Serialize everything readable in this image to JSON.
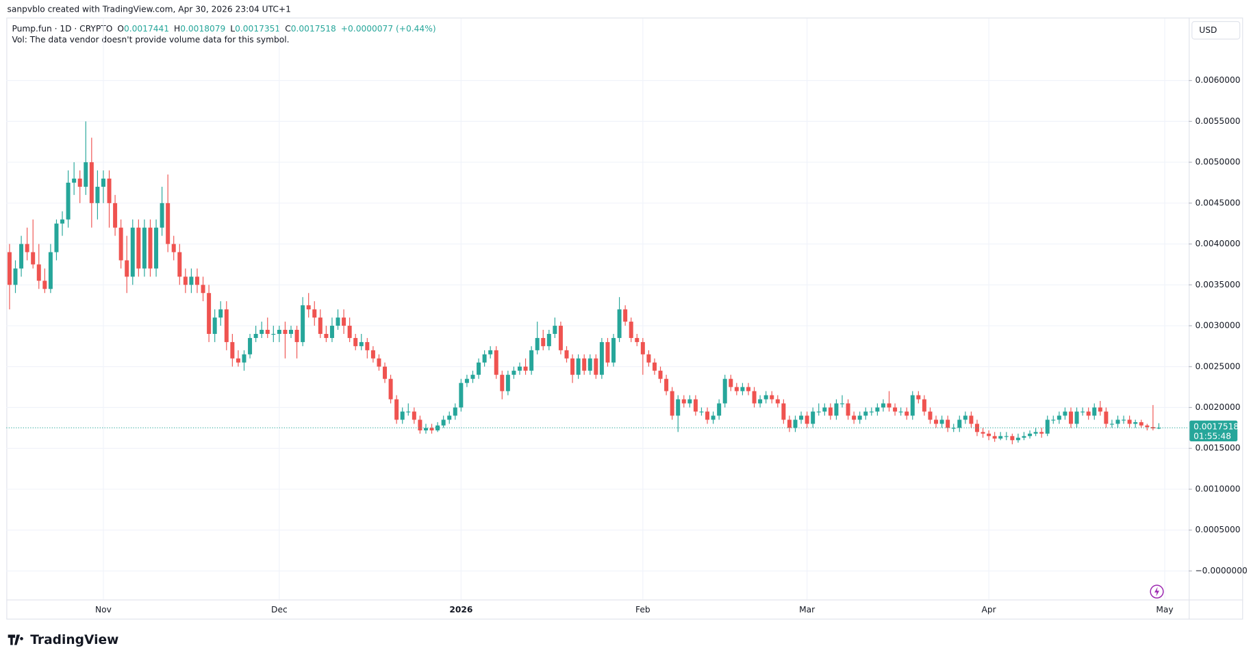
{
  "header": {
    "attribution": "sanpvblo created with TradingView.com, Apr 30, 2026 23:04 UTC+1",
    "logo": "TradingView"
  },
  "chart_data": {
    "type": "candlestick",
    "symbol": "Pump.fun · 1D · CRYPTO",
    "legend_keys": [
      "O",
      "H",
      "L",
      "C"
    ],
    "change": "+0.0000077 (+0.44%)",
    "volume_note": "Vol: The data vendor doesn't provide volume data for this symbol.",
    "currency": "USD",
    "countdown": "01:55:48",
    "up_color": "#26a69a",
    "down_color": "#ef5350",
    "grid": true,
    "xlim": [
      -0.54,
      201.1
    ],
    "xticks": [
      {
        "value": 16,
        "label": "Nov"
      },
      {
        "value": 46,
        "label": "Dec"
      },
      {
        "value": 77,
        "label": "2026"
      },
      {
        "value": 108,
        "label": "Feb"
      },
      {
        "value": 136,
        "label": "Mar"
      },
      {
        "value": 167,
        "label": "Apr"
      },
      {
        "value": 197,
        "label": "May"
      }
    ],
    "ylim": [
      -0.00035,
      0.00676
    ],
    "yticks": [
      {
        "value": 0,
        "label": "−0.0000000"
      },
      {
        "value": 0.0005,
        "label": "0.0005000"
      },
      {
        "value": 0.001,
        "label": "0.0010000"
      },
      {
        "value": 0.0015,
        "label": "0.0015000"
      },
      {
        "value": 0.002,
        "label": "0.0020000"
      },
      {
        "value": 0.0025,
        "label": "0.0025000"
      },
      {
        "value": 0.003,
        "label": "0.0030000"
      },
      {
        "value": 0.0035,
        "label": "0.0035000"
      },
      {
        "value": 0.004,
        "label": "0.0040000"
      },
      {
        "value": 0.0045,
        "label": "0.0045000"
      },
      {
        "value": 0.005,
        "label": "0.0050000"
      },
      {
        "value": 0.0055,
        "label": "0.0055000"
      },
      {
        "value": 0.006,
        "label": "0.0060000"
      }
    ],
    "ohlc": [
      [
        0.0039,
        0.004,
        0.0032,
        0.0035
      ],
      [
        0.0035,
        0.0038,
        0.0034,
        0.0037
      ],
      [
        0.0037,
        0.0041,
        0.0036,
        0.004
      ],
      [
        0.004,
        0.0042,
        0.0038,
        0.0039
      ],
      [
        0.0039,
        0.0043,
        0.0037,
        0.00375
      ],
      [
        0.00375,
        0.004,
        0.00345,
        0.00355
      ],
      [
        0.00355,
        0.0037,
        0.0034,
        0.00345
      ],
      [
        0.00345,
        0.004,
        0.0034,
        0.0039
      ],
      [
        0.0039,
        0.0043,
        0.0038,
        0.00425
      ],
      [
        0.00425,
        0.0044,
        0.0041,
        0.0043
      ],
      [
        0.0043,
        0.0049,
        0.0042,
        0.00475
      ],
      [
        0.00475,
        0.005,
        0.0046,
        0.0048
      ],
      [
        0.0048,
        0.0049,
        0.0045,
        0.0047
      ],
      [
        0.0047,
        0.0055,
        0.0046,
        0.005
      ],
      [
        0.005,
        0.0053,
        0.0042,
        0.0045
      ],
      [
        0.0045,
        0.0049,
        0.0043,
        0.0047
      ],
      [
        0.0047,
        0.0049,
        0.0045,
        0.0048
      ],
      [
        0.0048,
        0.0049,
        0.0042,
        0.0045
      ],
      [
        0.0045,
        0.0046,
        0.0041,
        0.0042
      ],
      [
        0.0042,
        0.0043,
        0.0037,
        0.0038
      ],
      [
        0.0038,
        0.0041,
        0.0034,
        0.0036
      ],
      [
        0.0036,
        0.0043,
        0.0035,
        0.0042
      ],
      [
        0.0042,
        0.0043,
        0.0036,
        0.0037
      ],
      [
        0.0037,
        0.0043,
        0.0036,
        0.0042
      ],
      [
        0.0042,
        0.0043,
        0.0036,
        0.0037
      ],
      [
        0.0037,
        0.0043,
        0.0036,
        0.0042
      ],
      [
        0.0042,
        0.0047,
        0.0041,
        0.0045
      ],
      [
        0.0045,
        0.00485,
        0.0039,
        0.004
      ],
      [
        0.004,
        0.0041,
        0.0038,
        0.0039
      ],
      [
        0.0039,
        0.004,
        0.0035,
        0.0036
      ],
      [
        0.0036,
        0.0037,
        0.0034,
        0.0035
      ],
      [
        0.0035,
        0.0037,
        0.0034,
        0.0036
      ],
      [
        0.0036,
        0.0037,
        0.0034,
        0.0035
      ],
      [
        0.0035,
        0.0036,
        0.0033,
        0.0034
      ],
      [
        0.0034,
        0.0035,
        0.0028,
        0.0029
      ],
      [
        0.0029,
        0.0032,
        0.0028,
        0.0031
      ],
      [
        0.0031,
        0.0033,
        0.003,
        0.0032
      ],
      [
        0.0032,
        0.0033,
        0.0027,
        0.0028
      ],
      [
        0.0028,
        0.0029,
        0.0025,
        0.0026
      ],
      [
        0.0026,
        0.0027,
        0.0025,
        0.00255
      ],
      [
        0.00255,
        0.0027,
        0.00245,
        0.00265
      ],
      [
        0.00265,
        0.0029,
        0.0026,
        0.00285
      ],
      [
        0.00285,
        0.003,
        0.0028,
        0.0029
      ],
      [
        0.0029,
        0.00305,
        0.00285,
        0.00295
      ],
      [
        0.00295,
        0.0031,
        0.00285,
        0.0029
      ],
      [
        0.0029,
        0.003,
        0.0028,
        0.0029
      ],
      [
        0.0029,
        0.003,
        0.0028,
        0.00295
      ],
      [
        0.00295,
        0.00305,
        0.0026,
        0.0029
      ],
      [
        0.0029,
        0.003,
        0.00285,
        0.00295
      ],
      [
        0.00295,
        0.003,
        0.0026,
        0.0028
      ],
      [
        0.0028,
        0.00335,
        0.00275,
        0.00325
      ],
      [
        0.00325,
        0.0034,
        0.0031,
        0.0032
      ],
      [
        0.0032,
        0.0033,
        0.003,
        0.0031
      ],
      [
        0.0031,
        0.0032,
        0.00285,
        0.0029
      ],
      [
        0.0029,
        0.003,
        0.0028,
        0.00285
      ],
      [
        0.00285,
        0.0031,
        0.0028,
        0.003
      ],
      [
        0.003,
        0.0032,
        0.00295,
        0.0031
      ],
      [
        0.0031,
        0.0032,
        0.0029,
        0.003
      ],
      [
        0.003,
        0.0031,
        0.0028,
        0.00285
      ],
      [
        0.00285,
        0.0029,
        0.0027,
        0.00275
      ],
      [
        0.00275,
        0.0029,
        0.0027,
        0.0028
      ],
      [
        0.0028,
        0.00285,
        0.0026,
        0.0027
      ],
      [
        0.0027,
        0.00275,
        0.00255,
        0.0026
      ],
      [
        0.0026,
        0.00265,
        0.00245,
        0.0025
      ],
      [
        0.0025,
        0.00255,
        0.0023,
        0.00235
      ],
      [
        0.00235,
        0.0024,
        0.00205,
        0.0021
      ],
      [
        0.0021,
        0.00215,
        0.0018,
        0.00185
      ],
      [
        0.00185,
        0.002,
        0.0018,
        0.00195
      ],
      [
        0.00195,
        0.00205,
        0.0019,
        0.00195
      ],
      [
        0.00195,
        0.002,
        0.0018,
        0.00185
      ],
      [
        0.00185,
        0.0019,
        0.00168,
        0.00172
      ],
      [
        0.00172,
        0.0018,
        0.00168,
        0.00175
      ],
      [
        0.00175,
        0.0018,
        0.00168,
        0.00172
      ],
      [
        0.00172,
        0.00182,
        0.0017,
        0.00178
      ],
      [
        0.00178,
        0.0019,
        0.00175,
        0.00185
      ],
      [
        0.00185,
        0.00195,
        0.0018,
        0.0019
      ],
      [
        0.0019,
        0.00205,
        0.00185,
        0.002
      ],
      [
        0.002,
        0.00235,
        0.00195,
        0.0023
      ],
      [
        0.0023,
        0.0024,
        0.00225,
        0.00235
      ],
      [
        0.00235,
        0.00245,
        0.0023,
        0.0024
      ],
      [
        0.0024,
        0.0026,
        0.00235,
        0.00255
      ],
      [
        0.00255,
        0.0027,
        0.0025,
        0.00265
      ],
      [
        0.00265,
        0.00275,
        0.0026,
        0.0027
      ],
      [
        0.0027,
        0.00275,
        0.00235,
        0.0024
      ],
      [
        0.0024,
        0.00245,
        0.0021,
        0.0022
      ],
      [
        0.0022,
        0.00245,
        0.00215,
        0.0024
      ],
      [
        0.0024,
        0.0025,
        0.00235,
        0.00245
      ],
      [
        0.00245,
        0.00255,
        0.0024,
        0.0025
      ],
      [
        0.0025,
        0.0026,
        0.0024,
        0.00245
      ],
      [
        0.00245,
        0.00275,
        0.0024,
        0.0027
      ],
      [
        0.0027,
        0.00305,
        0.00265,
        0.00285
      ],
      [
        0.00285,
        0.00295,
        0.0027,
        0.00275
      ],
      [
        0.00275,
        0.00295,
        0.0027,
        0.0029
      ],
      [
        0.0029,
        0.0031,
        0.00285,
        0.003
      ],
      [
        0.003,
        0.00305,
        0.00265,
        0.0027
      ],
      [
        0.0027,
        0.00275,
        0.00255,
        0.0026
      ],
      [
        0.0026,
        0.00265,
        0.0023,
        0.0024
      ],
      [
        0.0024,
        0.00265,
        0.00235,
        0.0026
      ],
      [
        0.0026,
        0.00265,
        0.0024,
        0.00245
      ],
      [
        0.00245,
        0.00265,
        0.0024,
        0.0026
      ],
      [
        0.0026,
        0.00265,
        0.00235,
        0.0024
      ],
      [
        0.0024,
        0.00285,
        0.00235,
        0.0028
      ],
      [
        0.0028,
        0.00285,
        0.0025,
        0.00255
      ],
      [
        0.00255,
        0.0029,
        0.0025,
        0.00285
      ],
      [
        0.00285,
        0.00335,
        0.0028,
        0.0032
      ],
      [
        0.0032,
        0.00325,
        0.003,
        0.00305
      ],
      [
        0.00305,
        0.0031,
        0.0028,
        0.00285
      ],
      [
        0.00285,
        0.0029,
        0.00275,
        0.0028
      ],
      [
        0.0028,
        0.00285,
        0.0024,
        0.00265
      ],
      [
        0.00265,
        0.0027,
        0.0025,
        0.00255
      ],
      [
        0.00255,
        0.0026,
        0.0024,
        0.00245
      ],
      [
        0.00245,
        0.0025,
        0.0023,
        0.00235
      ],
      [
        0.00235,
        0.0024,
        0.00215,
        0.0022
      ],
      [
        0.0022,
        0.00225,
        0.00185,
        0.0019
      ],
      [
        0.0019,
        0.00215,
        0.0017,
        0.0021
      ],
      [
        0.0021,
        0.00215,
        0.002,
        0.00205
      ],
      [
        0.00205,
        0.00215,
        0.002,
        0.0021
      ],
      [
        0.0021,
        0.00215,
        0.0019,
        0.00195
      ],
      [
        0.00195,
        0.002,
        0.0019,
        0.00195
      ],
      [
        0.00195,
        0.002,
        0.0018,
        0.00185
      ],
      [
        0.00185,
        0.00195,
        0.0018,
        0.0019
      ],
      [
        0.0019,
        0.0021,
        0.00185,
        0.00205
      ],
      [
        0.00205,
        0.0024,
        0.002,
        0.00235
      ],
      [
        0.00235,
        0.0024,
        0.0022,
        0.00225
      ],
      [
        0.00225,
        0.0023,
        0.00215,
        0.0022
      ],
      [
        0.0022,
        0.0023,
        0.00215,
        0.00225
      ],
      [
        0.00225,
        0.0023,
        0.00215,
        0.0022
      ],
      [
        0.0022,
        0.00225,
        0.002,
        0.00205
      ],
      [
        0.00205,
        0.00215,
        0.002,
        0.0021
      ],
      [
        0.0021,
        0.0022,
        0.00205,
        0.00215
      ],
      [
        0.00215,
        0.0022,
        0.00205,
        0.0021
      ],
      [
        0.0021,
        0.00215,
        0.002,
        0.00205
      ],
      [
        0.00205,
        0.0021,
        0.0018,
        0.00185
      ],
      [
        0.00185,
        0.0019,
        0.0017,
        0.00175
      ],
      [
        0.00175,
        0.0019,
        0.0017,
        0.00185
      ],
      [
        0.00185,
        0.00195,
        0.0018,
        0.0019
      ],
      [
        0.0019,
        0.00195,
        0.00175,
        0.0018
      ],
      [
        0.0018,
        0.002,
        0.00175,
        0.00195
      ],
      [
        0.00195,
        0.00205,
        0.0019,
        0.00195
      ],
      [
        0.00195,
        0.00205,
        0.0019,
        0.002
      ],
      [
        0.002,
        0.00205,
        0.00185,
        0.0019
      ],
      [
        0.0019,
        0.0021,
        0.00185,
        0.00205
      ],
      [
        0.00205,
        0.00215,
        0.002,
        0.00205
      ],
      [
        0.00205,
        0.0021,
        0.00185,
        0.0019
      ],
      [
        0.0019,
        0.00195,
        0.0018,
        0.00185
      ],
      [
        0.00185,
        0.00195,
        0.0018,
        0.0019
      ],
      [
        0.0019,
        0.002,
        0.00185,
        0.00195
      ],
      [
        0.00195,
        0.002,
        0.0019,
        0.00195
      ],
      [
        0.00195,
        0.00205,
        0.0019,
        0.002
      ],
      [
        0.002,
        0.0021,
        0.00195,
        0.00205
      ],
      [
        0.00205,
        0.0022,
        0.00195,
        0.002
      ],
      [
        0.002,
        0.00205,
        0.0019,
        0.00195
      ],
      [
        0.00195,
        0.002,
        0.0019,
        0.00195
      ],
      [
        0.00195,
        0.002,
        0.00185,
        0.0019
      ],
      [
        0.0019,
        0.0022,
        0.00185,
        0.00215
      ],
      [
        0.00215,
        0.0022,
        0.00205,
        0.0021
      ],
      [
        0.0021,
        0.00215,
        0.0019,
        0.00195
      ],
      [
        0.00195,
        0.002,
        0.0018,
        0.00185
      ],
      [
        0.00185,
        0.0019,
        0.00175,
        0.0018
      ],
      [
        0.0018,
        0.0019,
        0.00175,
        0.00185
      ],
      [
        0.00185,
        0.0019,
        0.0017,
        0.00175
      ],
      [
        0.00175,
        0.0018,
        0.0017,
        0.00175
      ],
      [
        0.00175,
        0.0019,
        0.0017,
        0.00185
      ],
      [
        0.00185,
        0.00195,
        0.0018,
        0.0019
      ],
      [
        0.0019,
        0.00195,
        0.00175,
        0.0018
      ],
      [
        0.0018,
        0.00185,
        0.00165,
        0.0017
      ],
      [
        0.0017,
        0.00175,
        0.00163,
        0.00168
      ],
      [
        0.00168,
        0.00172,
        0.0016,
        0.00165
      ],
      [
        0.00165,
        0.0017,
        0.00158,
        0.00162
      ],
      [
        0.00162,
        0.0017,
        0.0016,
        0.00165
      ],
      [
        0.00165,
        0.0017,
        0.0016,
        0.00165
      ],
      [
        0.00165,
        0.00168,
        0.00155,
        0.0016
      ],
      [
        0.0016,
        0.00168,
        0.00157,
        0.00163
      ],
      [
        0.00163,
        0.0017,
        0.0016,
        0.00165
      ],
      [
        0.00165,
        0.00172,
        0.00162,
        0.00168
      ],
      [
        0.00168,
        0.00175,
        0.00165,
        0.0017
      ],
      [
        0.0017,
        0.00175,
        0.00163,
        0.00168
      ],
      [
        0.00168,
        0.0019,
        0.00165,
        0.00185
      ],
      [
        0.00185,
        0.0019,
        0.0018,
        0.00185
      ],
      [
        0.00185,
        0.00195,
        0.0018,
        0.0019
      ],
      [
        0.0019,
        0.002,
        0.00185,
        0.00195
      ],
      [
        0.00195,
        0.002,
        0.00175,
        0.0018
      ],
      [
        0.0018,
        0.002,
        0.00175,
        0.00195
      ],
      [
        0.00195,
        0.002,
        0.0019,
        0.00195
      ],
      [
        0.00195,
        0.002,
        0.00185,
        0.0019
      ],
      [
        0.0019,
        0.00205,
        0.00185,
        0.002
      ],
      [
        0.002,
        0.00208,
        0.0019,
        0.00195
      ],
      [
        0.00195,
        0.002,
        0.00175,
        0.0018
      ],
      [
        0.0018,
        0.00185,
        0.00175,
        0.0018
      ],
      [
        0.0018,
        0.0019,
        0.00175,
        0.00185
      ],
      [
        0.00185,
        0.0019,
        0.0018,
        0.00185
      ],
      [
        0.00185,
        0.0019,
        0.00175,
        0.0018
      ],
      [
        0.0018,
        0.00185,
        0.00175,
        0.00182
      ],
      [
        0.00182,
        0.00185,
        0.00175,
        0.00178
      ],
      [
        0.00178,
        0.0018,
        0.00172,
        0.00176
      ],
      [
        0.00176,
        0.00203,
        0.00172,
        0.0017441
      ],
      [
        0.0017441,
        0.0018079,
        0.0017351,
        0.0017518
      ]
    ]
  }
}
